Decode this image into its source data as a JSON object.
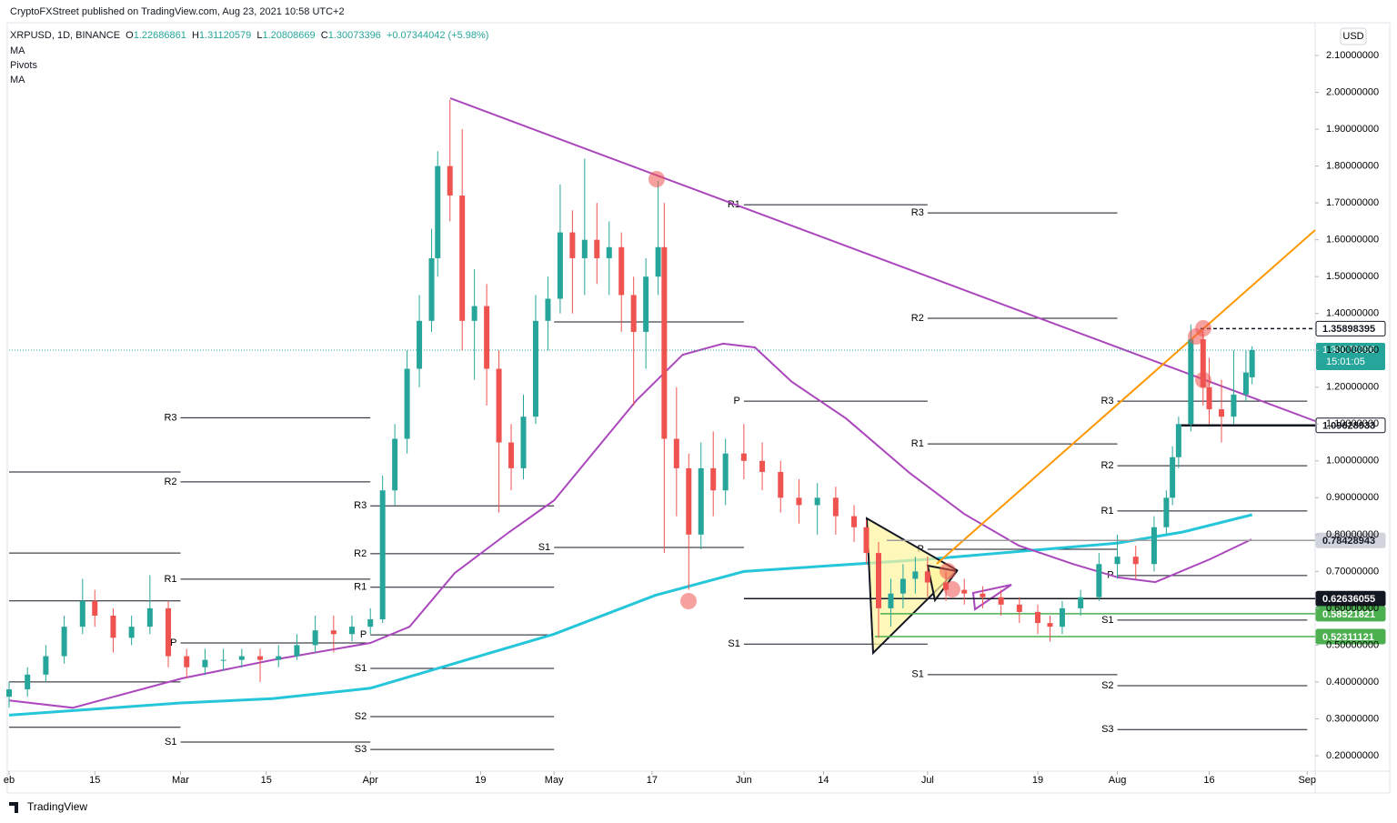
{
  "header": {
    "published": "CryptoFXStreet published on TradingView.com, Aug 23, 2021 10:58 UTC+2",
    "symbol": "XRPUSD, 1D, BINANCE",
    "ohlc_labels": [
      "O",
      "H",
      "L",
      "C"
    ],
    "change": "+0.07344042 (+5.98%)",
    "indicators": [
      "MA",
      "Pivots",
      "MA"
    ],
    "currency": "USD",
    "countdown": "15:01:05",
    "logo": "TradingView"
  },
  "chart_data": {
    "type": "candlestick",
    "up_color": "#26a69a",
    "down_color": "#ef5350",
    "x": [
      32,
      35,
      38,
      41,
      44,
      46,
      49,
      52,
      55,
      58,
      61,
      64,
      67,
      70,
      73,
      76,
      79,
      82,
      85,
      88,
      91,
      93,
      95,
      97,
      99,
      101,
      102,
      104,
      106,
      108,
      110,
      112,
      114,
      116,
      118,
      120,
      122,
      124,
      126,
      128,
      130,
      132,
      134,
      136,
      138,
      139,
      141,
      143,
      145,
      147,
      149,
      152,
      155,
      158,
      161,
      164,
      167,
      170,
      172,
      174,
      176,
      178,
      180,
      182,
      185,
      188,
      191,
      194,
      197,
      200,
      202,
      204,
      207,
      210,
      213,
      216,
      219,
      221,
      222,
      223,
      225,
      227,
      228,
      230,
      232,
      234,
      235
    ],
    "open": [
      0.36,
      0.38,
      0.42,
      0.47,
      0.55,
      0.62,
      0.58,
      0.52,
      0.55,
      0.6,
      0.47,
      0.44,
      0.46,
      0.46,
      0.47,
      0.46,
      0.47,
      0.5,
      0.54,
      0.53,
      0.55,
      0.57,
      0.92,
      1.06,
      1.25,
      1.38,
      1.55,
      1.8,
      1.72,
      1.38,
      1.42,
      1.25,
      1.05,
      0.98,
      1.12,
      1.38,
      1.44,
      1.62,
      1.55,
      1.6,
      1.55,
      1.58,
      1.45,
      1.35,
      1.5,
      1.58,
      1.06,
      0.98,
      0.8,
      0.98,
      0.92,
      1.02,
      1.0,
      0.97,
      0.9,
      0.88,
      0.9,
      0.85,
      0.82,
      0.75,
      0.6,
      0.64,
      0.68,
      0.7,
      0.67,
      0.65,
      0.64,
      0.63,
      0.61,
      0.59,
      0.56,
      0.55,
      0.6,
      0.63,
      0.72,
      0.74,
      0.72,
      0.82,
      0.9,
      1.01,
      1.1,
      1.33,
      1.2,
      1.14,
      1.12,
      1.18,
      1.22686861
    ],
    "high": [
      0.4,
      0.44,
      0.5,
      0.58,
      0.68,
      0.65,
      0.6,
      0.58,
      0.69,
      0.62,
      0.49,
      0.49,
      0.49,
      0.49,
      0.49,
      0.5,
      0.53,
      0.58,
      0.58,
      0.58,
      0.6,
      0.96,
      1.1,
      1.3,
      1.45,
      1.63,
      1.84,
      1.98,
      1.9,
      1.52,
      1.48,
      1.3,
      1.1,
      1.18,
      1.45,
      1.5,
      1.75,
      1.68,
      1.82,
      1.7,
      1.65,
      1.62,
      1.5,
      1.55,
      1.76,
      1.7,
      1.2,
      1.02,
      1.05,
      1.08,
      1.06,
      1.1,
      1.05,
      1.0,
      0.95,
      0.94,
      0.93,
      0.88,
      0.84,
      0.78,
      0.68,
      0.72,
      0.74,
      0.74,
      0.7,
      0.68,
      0.66,
      0.65,
      0.63,
      0.61,
      0.58,
      0.62,
      0.65,
      0.75,
      0.8,
      0.77,
      0.85,
      0.92,
      1.04,
      1.12,
      1.37,
      1.36,
      1.28,
      1.22,
      1.3,
      1.3,
      1.31120579
    ],
    "low": [
      0.33,
      0.36,
      0.4,
      0.45,
      0.53,
      0.55,
      0.48,
      0.5,
      0.53,
      0.44,
      0.41,
      0.42,
      0.43,
      0.44,
      0.4,
      0.44,
      0.46,
      0.48,
      0.48,
      0.51,
      0.53,
      0.56,
      0.88,
      1.02,
      1.2,
      1.35,
      1.5,
      1.65,
      1.3,
      1.22,
      1.15,
      0.86,
      0.92,
      0.95,
      1.1,
      1.3,
      1.4,
      1.4,
      1.45,
      1.48,
      1.45,
      1.35,
      1.15,
      1.25,
      1.45,
      0.75,
      0.85,
      0.65,
      0.76,
      0.85,
      0.88,
      0.95,
      0.92,
      0.86,
      0.83,
      0.8,
      0.8,
      0.78,
      0.72,
      0.52,
      0.55,
      0.6,
      0.64,
      0.63,
      0.62,
      0.61,
      0.6,
      0.58,
      0.56,
      0.53,
      0.51,
      0.53,
      0.58,
      0.62,
      0.68,
      0.68,
      0.7,
      0.8,
      0.88,
      0.98,
      1.08,
      1.15,
      1.1,
      1.05,
      1.1,
      1.16,
      1.20808669
    ],
    "close": [
      0.38,
      0.42,
      0.47,
      0.55,
      0.62,
      0.58,
      0.52,
      0.55,
      0.6,
      0.47,
      0.44,
      0.46,
      0.46,
      0.47,
      0.46,
      0.47,
      0.5,
      0.54,
      0.53,
      0.55,
      0.57,
      0.92,
      1.06,
      1.25,
      1.38,
      1.55,
      1.8,
      1.72,
      1.38,
      1.42,
      1.25,
      1.05,
      0.98,
      1.12,
      1.38,
      1.44,
      1.62,
      1.55,
      1.6,
      1.55,
      1.58,
      1.45,
      1.35,
      1.5,
      1.58,
      1.06,
      0.98,
      0.8,
      0.98,
      0.92,
      1.02,
      1.0,
      0.97,
      0.9,
      0.88,
      0.9,
      0.85,
      0.82,
      0.75,
      0.6,
      0.64,
      0.68,
      0.7,
      0.67,
      0.65,
      0.64,
      0.63,
      0.61,
      0.59,
      0.56,
      0.55,
      0.6,
      0.63,
      0.72,
      0.74,
      0.72,
      0.82,
      0.9,
      1.01,
      1.1,
      1.33,
      1.2,
      1.14,
      1.12,
      1.18,
      1.24,
      1.30073396
    ],
    "xlim": [
      32,
      245.3
    ],
    "ylim": [
      0.158,
      2.189
    ],
    "xticks": [
      {
        "value": 32,
        "label": "eb"
      },
      {
        "value": 46,
        "label": "15"
      },
      {
        "value": 60,
        "label": "Mar"
      },
      {
        "value": 74,
        "label": "15"
      },
      {
        "value": 91,
        "label": "Apr"
      },
      {
        "value": 109,
        "label": "19"
      },
      {
        "value": 121,
        "label": "May"
      },
      {
        "value": 137,
        "label": "17"
      },
      {
        "value": 152,
        "label": "Jun"
      },
      {
        "value": 165,
        "label": "14"
      },
      {
        "value": 182,
        "label": "Jul"
      },
      {
        "value": 200,
        "label": "19"
      },
      {
        "value": 213,
        "label": "Aug"
      },
      {
        "value": 228,
        "label": "16"
      },
      {
        "value": 244,
        "label": "Sep"
      }
    ],
    "yticks": [
      {
        "value": 0.2,
        "label": "0.20000000"
      },
      {
        "value": 0.3,
        "label": "0.30000000"
      },
      {
        "value": 0.4,
        "label": "0.40000000"
      },
      {
        "value": 0.5,
        "label": "0.50000000"
      },
      {
        "value": 0.6,
        "label": "0.60000000"
      },
      {
        "value": 0.7,
        "label": "0.70000000"
      },
      {
        "value": 0.8,
        "label": "0.80000000"
      },
      {
        "value": 0.9,
        "label": "0.90000000"
      },
      {
        "value": 1.0,
        "label": "1.00000000"
      },
      {
        "value": 1.1,
        "label": "1.10000000"
      },
      {
        "value": 1.2,
        "label": "1.20000000"
      },
      {
        "value": 1.3,
        "label": "1.30000000"
      },
      {
        "value": 1.4,
        "label": "1.40000000"
      },
      {
        "value": 1.5,
        "label": "1.50000000"
      },
      {
        "value": 1.6,
        "label": "1.60000000"
      },
      {
        "value": 1.7,
        "label": "1.70000000"
      },
      {
        "value": 1.8,
        "label": "1.80000000"
      },
      {
        "value": 1.9,
        "label": "1.90000000"
      },
      {
        "value": 2.0,
        "label": "2.00000000"
      },
      {
        "value": 2.1,
        "label": "2.10000000"
      }
    ],
    "ma": [
      {
        "color": "#26c6da",
        "x": [
          32,
          60,
          75,
          91,
          121,
          137.5,
          152,
          182,
          213,
          223.7,
          235
        ],
        "values": [
          0.31,
          0.343,
          0.355,
          0.383,
          0.53,
          0.635,
          0.7,
          0.733,
          0.777,
          0.807,
          0.854
        ]
      },
      {
        "color": "#ab47bc",
        "x": [
          32,
          42.4,
          60.3,
          75.1,
          91,
          97.4,
          104.8,
          113.7,
          121,
          134.5,
          142,
          148.6,
          153.8,
          159.8,
          168.7,
          179.1,
          188,
          196.9,
          205.8,
          213.1,
          219.2,
          228.1,
          234.9
        ],
        "values": [
          0.35,
          0.33,
          0.41,
          0.46,
          0.506,
          0.55,
          0.696,
          0.807,
          0.893,
          1.165,
          1.288,
          1.318,
          1.308,
          1.215,
          1.115,
          0.967,
          0.856,
          0.77,
          0.72,
          0.684,
          0.671,
          0.733,
          0.787
        ]
      }
    ],
    "levels": [
      {
        "value": 1.35898395,
        "color": "#131722",
        "dash": true,
        "label_bg": "#ffffff",
        "label_fg": "#131722"
      },
      {
        "value": 1.09628933,
        "color": "#131722",
        "dash": false,
        "label_bg": "#ffffff",
        "label_fg": "#131722"
      },
      {
        "value": 0.78428943,
        "color": "#9e9e9e",
        "dash": false,
        "label_bg": "#d1d4dc",
        "label_fg": "#131722"
      },
      {
        "value": 0.62636055,
        "color": "#131722",
        "dash": false,
        "label_bg": "#131722",
        "label_fg": "#ffffff"
      },
      {
        "value": 0.58521821,
        "color": "#4caf50",
        "dash": false,
        "label_bg": "#4caf50",
        "label_fg": "#ffffff"
      },
      {
        "value": 0.52311121,
        "color": "#4caf50",
        "dash": false,
        "label_bg": "#4caf50",
        "label_fg": "#ffffff"
      }
    ],
    "pivot_periods": [
      {
        "from": 32,
        "to": 60,
        "pivots": [
          {
            "label": null,
            "value": 0.97
          },
          {
            "label": null,
            "value": 0.75
          },
          {
            "label": null,
            "value": 0.62
          },
          {
            "label": null,
            "value": 0.4
          },
          {
            "label": null,
            "value": 0.277
          }
        ]
      },
      {
        "from": 60,
        "to": 91,
        "pivots": [
          {
            "label": "R3",
            "value": 1.117
          },
          {
            "label": "R2",
            "value": 0.943
          },
          {
            "label": "R1",
            "value": 0.679
          },
          {
            "label": "P",
            "value": 0.506
          },
          {
            "label": "S1",
            "value": 0.237
          }
        ]
      },
      {
        "from": 91,
        "to": 121,
        "pivots": [
          {
            "label": "R3",
            "value": 0.878
          },
          {
            "label": "R2",
            "value": 0.748
          },
          {
            "label": "R1",
            "value": 0.657
          },
          {
            "label": "P",
            "value": 0.528
          },
          {
            "label": "S1",
            "value": 0.437
          },
          {
            "label": "S2",
            "value": 0.306
          },
          {
            "label": "S3",
            "value": 0.217
          }
        ]
      },
      {
        "from": 121,
        "to": 152,
        "pivots": [
          {
            "label": null,
            "value": 1.377
          },
          {
            "label": "S1",
            "value": 0.765
          }
        ]
      },
      {
        "from": 152,
        "to": 182,
        "pivots": [
          {
            "label": "R1",
            "value": 1.695
          },
          {
            "label": "P",
            "value": 1.162
          },
          {
            "label": "S1",
            "value": 0.503
          }
        ]
      },
      {
        "from": 182,
        "to": 213,
        "pivots": [
          {
            "label": "R3",
            "value": 1.673
          },
          {
            "label": "R2",
            "value": 1.387
          },
          {
            "label": "R1",
            "value": 1.046
          },
          {
            "label": "P",
            "value": 0.76
          },
          {
            "label": "S1",
            "value": 0.42
          }
        ]
      },
      {
        "from": 213,
        "to": 244,
        "pivots": [
          {
            "label": "R3",
            "value": 1.162
          },
          {
            "label": "R2",
            "value": 0.987
          },
          {
            "label": "R1",
            "value": 0.864
          },
          {
            "label": "P",
            "value": 0.689
          },
          {
            "label": "S1",
            "value": 0.568
          },
          {
            "label": "S2",
            "value": 0.39
          },
          {
            "label": "S3",
            "value": 0.271
          }
        ]
      }
    ]
  }
}
